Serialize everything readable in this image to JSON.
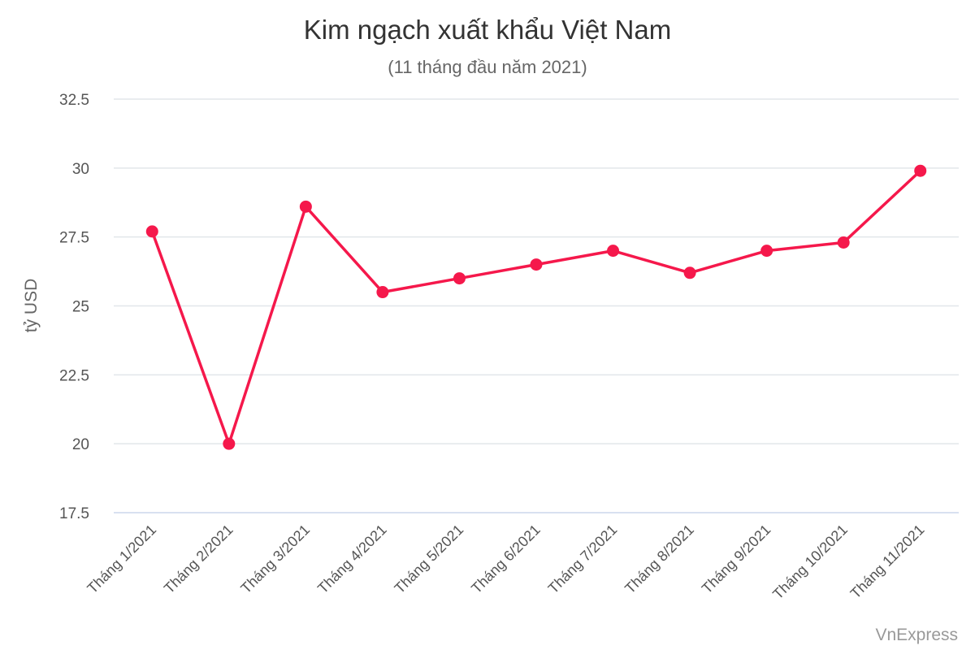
{
  "chart_data": {
    "type": "line",
    "title": "Kim ngạch xuất khẩu Việt Nam",
    "subtitle": "(11 tháng đầu năm 2021)",
    "xlabel": "",
    "ylabel": "tỷ USD",
    "categories": [
      "Tháng 1/2021",
      "Tháng 2/2021",
      "Tháng 3/2021",
      "Tháng 4/2021",
      "Tháng 5/2021",
      "Tháng 6/2021",
      "Tháng 7/2021",
      "Tháng 8/2021",
      "Tháng 9/2021",
      "Tháng 10/2021",
      "Tháng 11/2021"
    ],
    "series": [
      {
        "values": [
          27.7,
          20.0,
          28.6,
          25.5,
          26.0,
          26.5,
          27.0,
          26.2,
          27.0,
          27.3,
          29.9
        ],
        "color": "#f5184b"
      }
    ],
    "ylim": [
      17.5,
      32.5
    ],
    "yticks": [
      "17.5",
      "20",
      "22.5",
      "25",
      "27.5",
      "30",
      "32.5"
    ],
    "grid": true,
    "legend": "none"
  },
  "credit": "VnExpress"
}
